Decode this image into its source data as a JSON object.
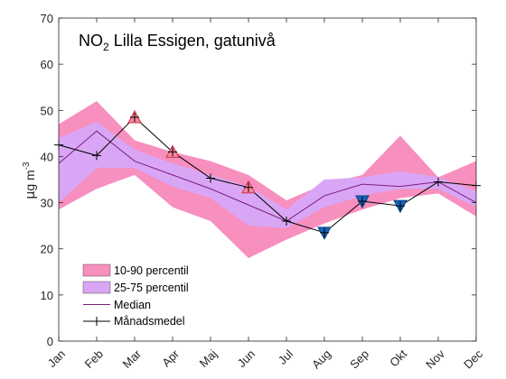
{
  "chart_data": {
    "type": "area",
    "title_main": "NO",
    "title_sub": "2",
    "title_rest": " Lilla Essigen, gatunivå",
    "ylabel_mu": "μ",
    "ylabel_main": "g m",
    "ylabel_exp": "-3",
    "ylim": [
      0,
      70
    ],
    "yticks": [
      "0",
      "10",
      "20",
      "30",
      "40",
      "50",
      "60",
      "70"
    ],
    "categories": [
      "Jan",
      "Feb",
      "Mar",
      "Apr",
      "Maj",
      "Jun",
      "Jul",
      "Aug",
      "Sep",
      "Okt",
      "Nov",
      "Dec"
    ],
    "grid": false,
    "legend_position": "bottom-left",
    "series": [
      {
        "name": "10-90 percentil",
        "kind": "band",
        "color": "#f78fbf",
        "low": [
          28.5,
          33,
          36,
          29,
          26,
          18,
          22,
          25.5,
          28.5,
          31,
          32,
          27
        ],
        "high": [
          47,
          52,
          43.5,
          41,
          39,
          36,
          30.5,
          34,
          36,
          44.5,
          35.5,
          39
        ]
      },
      {
        "name": "25-75 percentil",
        "kind": "band",
        "color": "#d9a6f5",
        "low": [
          30,
          37.5,
          37.5,
          33.5,
          31,
          25,
          24.5,
          29,
          31.5,
          33,
          33,
          29
        ],
        "high": [
          44,
          47.5,
          41.5,
          38.5,
          36,
          33.5,
          28.5,
          35,
          35.5,
          36.8,
          35.5,
          32.5
        ]
      },
      {
        "name": "Median",
        "kind": "line",
        "color": "#7a1f7a",
        "values": [
          38.5,
          45.5,
          39,
          36,
          33,
          29.5,
          26,
          31.5,
          34,
          33.5,
          34.5,
          30
        ]
      },
      {
        "name": "Månadsmedel",
        "kind": "line-marker",
        "color": "#000000",
        "values": [
          42.5,
          40.2,
          48.5,
          41,
          35.3,
          33.3,
          26,
          23.5,
          30.3,
          29.3,
          34.5,
          33.7
        ]
      }
    ],
    "high_markers": {
      "color": "#f7889c",
      "months": [
        2,
        3,
        5
      ]
    },
    "low_markers": {
      "color": "#1565c0",
      "months": [
        7,
        8,
        9
      ]
    }
  }
}
